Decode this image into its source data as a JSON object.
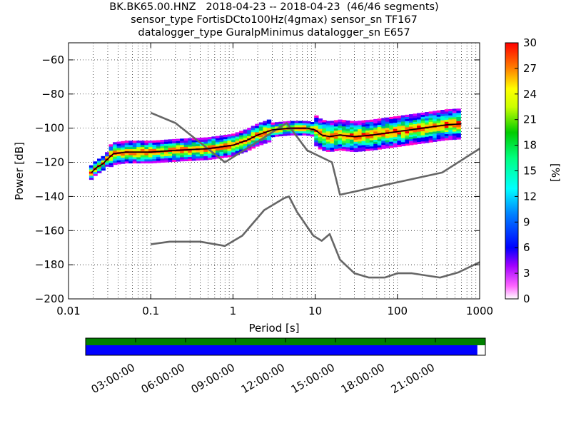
{
  "title_lines": [
    "BK.BK65.00.HNZ   2018-04-23 -- 2018-04-23  (46/46 segments)",
    "sensor_type FortisDCto100Hz(4gmax) sensor_sn TF167",
    "datalogger_type GuralpMinimus datalogger_sn E657"
  ],
  "chart_data": {
    "type": "line",
    "xlabel": "Period [s]",
    "ylabel": "Power [dB]",
    "xscale": "log",
    "xlim": [
      0.01,
      1000
    ],
    "ylim": [
      -200,
      -50
    ],
    "x_ticks": [
      {
        "value": 0.01,
        "label": "0.01"
      },
      {
        "value": 0.1,
        "label": "0.1"
      },
      {
        "value": 1,
        "label": "1"
      },
      {
        "value": 10,
        "label": "10"
      },
      {
        "value": 100,
        "label": "100"
      },
      {
        "value": 1000,
        "label": "1000"
      }
    ],
    "y_ticks": [
      {
        "value": -60,
        "label": "−60"
      },
      {
        "value": -80,
        "label": "−80"
      },
      {
        "value": -100,
        "label": "−100"
      },
      {
        "value": -120,
        "label": "−120"
      },
      {
        "value": -140,
        "label": "−140"
      },
      {
        "value": -160,
        "label": "−160"
      },
      {
        "value": -180,
        "label": "−180"
      },
      {
        "value": -200,
        "label": "−200"
      }
    ],
    "grid": true,
    "colorbar": {
      "label": "[%]",
      "range": [
        0,
        30
      ],
      "ticks": [
        "0",
        "3",
        "6",
        "9",
        "12",
        "15",
        "18",
        "21",
        "24",
        "27",
        "30"
      ]
    },
    "series": [
      {
        "x": [
          0.1,
          0.2,
          0.8,
          4.5,
          8,
          16,
          20,
          350,
          1000
        ],
        "y": [
          -91,
          -97,
          -120,
          -97,
          -113,
          -120,
          -139,
          -126,
          -112
        ]
      },
      {
        "x": [
          0.1,
          0.17,
          0.4,
          0.8,
          1.3,
          2.4,
          4.2,
          4.8,
          6,
          9.5,
          12,
          15,
          20,
          30,
          45,
          70,
          100,
          150,
          330,
          550,
          1000
        ],
        "y": [
          -168,
          -166.5,
          -166.5,
          -169,
          -163,
          -148,
          -141,
          -140,
          -149,
          -163,
          -166,
          -162,
          -177,
          -185,
          -187.5,
          -187.5,
          -185,
          -185,
          -187.5,
          -184.5,
          -178.5
        ]
      },
      {
        "x": [
          0.019,
          0.022,
          0.026,
          0.03,
          0.035,
          0.05,
          0.1,
          0.2,
          0.5,
          1,
          1.5,
          2,
          3,
          5,
          8,
          10,
          12,
          15,
          20,
          30,
          50,
          100,
          200,
          400,
          600
        ],
        "y": [
          -126,
          -123,
          -121,
          -118,
          -115,
          -114,
          -114,
          -113,
          -112,
          -110,
          -107,
          -104,
          -101,
          -100,
          -100,
          -101,
          -104,
          -105,
          -104,
          -105,
          -104,
          -102,
          -100,
          -98,
          -97.5
        ]
      }
    ],
    "availability": {
      "x_ticks": [
        "03:00:00",
        "06:00:00",
        "09:00:00",
        "12:00:00",
        "15:00:00",
        "18:00:00",
        "21:00:00"
      ],
      "coverage": 0.98
    }
  },
  "colors": {
    "reference_models": "#666666",
    "mean": "#000000",
    "availability_green": "#008000",
    "availability_blue": "#0000ff"
  }
}
